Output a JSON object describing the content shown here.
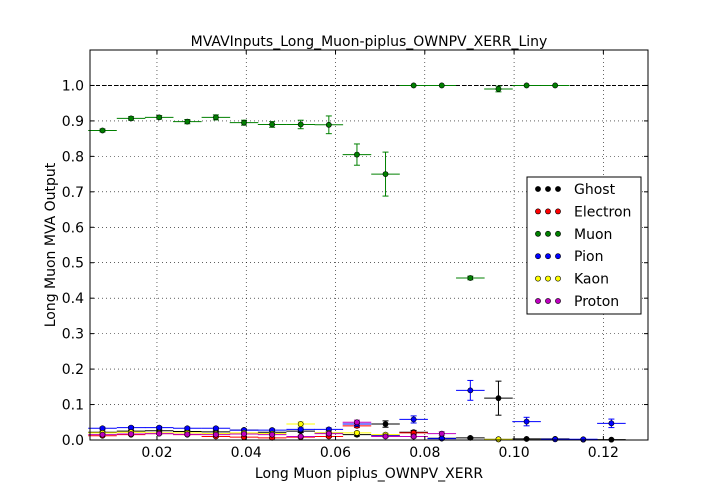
{
  "chart_data": {
    "type": "scatter",
    "title": "MVAVInputs_Long_Muon-piplus_OWNPV_XERR_Liny",
    "xlabel": "Long Muon piplus_OWNPV_XERR",
    "ylabel": "Long Muon MVA Output",
    "xlim": [
      0.005,
      0.13
    ],
    "ylim": [
      0.0,
      1.1
    ],
    "xticks": [
      "0.02",
      "0.04",
      "0.06",
      "0.08",
      "0.10",
      "0.12"
    ],
    "xtick_values": [
      0.02,
      0.04,
      0.06,
      0.08,
      0.1,
      0.12
    ],
    "yticks": [
      "0.0",
      "0.1",
      "0.2",
      "0.3",
      "0.4",
      "0.5",
      "0.6",
      "0.7",
      "0.8",
      "0.9",
      "1.0"
    ],
    "ytick_values": [
      0.0,
      0.1,
      0.2,
      0.3,
      0.4,
      0.5,
      0.6,
      0.7,
      0.8,
      0.9,
      1.0
    ],
    "grid": true,
    "reference_line": 1.0,
    "legend_position": "center-right",
    "bin_half_width": 0.0032,
    "series": [
      {
        "name": "Ghost",
        "color": "#000000",
        "x": [
          0.0078,
          0.0142,
          0.0205,
          0.0268,
          0.0332,
          0.0395,
          0.0458,
          0.0522,
          0.0585,
          0.0648,
          0.0712,
          0.0775,
          0.0838,
          0.0902,
          0.0965,
          0.1028,
          0.1092,
          0.1155,
          0.1218
        ],
        "y": [
          0.022,
          0.025,
          0.026,
          0.024,
          0.023,
          0.028,
          0.022,
          0.025,
          0.02,
          0.015,
          0.045,
          0.022,
          0.005,
          0.006,
          0.118,
          0.003,
          0.003,
          0.001,
          0.001
        ],
        "yerr": [
          0.003,
          0.003,
          0.003,
          0.003,
          0.003,
          0.003,
          0.003,
          0.004,
          0.004,
          0.004,
          0.009,
          0.005,
          0.002,
          0.002,
          0.048,
          0.001,
          0.001,
          0.001,
          0.001
        ]
      },
      {
        "name": "Electron",
        "color": "#ff0000",
        "x": [
          0.0078,
          0.0142,
          0.0205,
          0.0268,
          0.0332,
          0.0395,
          0.0458,
          0.0522,
          0.0585,
          0.0648,
          0.0712,
          0.0775
        ],
        "y": [
          0.012,
          0.015,
          0.018,
          0.015,
          0.01,
          0.008,
          0.006,
          0.008,
          0.01,
          0.04,
          0.012,
          0.02
        ],
        "yerr": [
          0.002,
          0.002,
          0.002,
          0.002,
          0.002,
          0.002,
          0.002,
          0.002,
          0.003,
          0.005,
          0.003,
          0.004
        ]
      },
      {
        "name": "Muon",
        "color": "#008000",
        "x": [
          0.0078,
          0.0142,
          0.0205,
          0.0268,
          0.0332,
          0.0395,
          0.0458,
          0.0522,
          0.0585,
          0.0648,
          0.0712,
          0.0775,
          0.0838,
          0.0902,
          0.0965,
          0.1028,
          0.1092
        ],
        "y": [
          0.873,
          0.907,
          0.91,
          0.898,
          0.91,
          0.895,
          0.89,
          0.89,
          0.889,
          0.805,
          0.75,
          1.0,
          1.0,
          0.457,
          0.99,
          1.0,
          1.0
        ],
        "yerr": [
          0.004,
          0.005,
          0.005,
          0.006,
          0.007,
          0.007,
          0.008,
          0.012,
          0.025,
          0.03,
          0.062,
          0.0,
          0.0,
          0.005,
          0.008,
          0.0,
          0.0
        ]
      },
      {
        "name": "Pion",
        "color": "#0000ff",
        "x": [
          0.0078,
          0.0142,
          0.0205,
          0.0268,
          0.0332,
          0.0395,
          0.0458,
          0.0522,
          0.0585,
          0.0648,
          0.0712,
          0.0775,
          0.0838,
          0.0902,
          0.0965,
          0.1028,
          0.1092,
          0.1155,
          0.1218
        ],
        "y": [
          0.033,
          0.035,
          0.035,
          0.033,
          0.033,
          0.028,
          0.028,
          0.03,
          0.03,
          0.045,
          0.013,
          0.058,
          0.004,
          0.14,
          0.002,
          0.052,
          0.002,
          0.002,
          0.047
        ],
        "yerr": [
          0.003,
          0.003,
          0.003,
          0.003,
          0.003,
          0.003,
          0.003,
          0.004,
          0.004,
          0.006,
          0.004,
          0.01,
          0.002,
          0.028,
          0.001,
          0.012,
          0.001,
          0.001,
          0.012
        ]
      },
      {
        "name": "Kaon",
        "color": "#ffff00",
        "x": [
          0.0078,
          0.0142,
          0.0205,
          0.0268,
          0.0332,
          0.0395,
          0.0458,
          0.0522,
          0.0585,
          0.0648,
          0.0712,
          0.0775,
          0.0965
        ],
        "y": [
          0.02,
          0.022,
          0.02,
          0.02,
          0.018,
          0.02,
          0.018,
          0.045,
          0.02,
          0.02,
          0.015,
          0.01,
          0.002
        ],
        "yerr": [
          0.002,
          0.002,
          0.002,
          0.002,
          0.002,
          0.003,
          0.003,
          0.006,
          0.004,
          0.004,
          0.004,
          0.003,
          0.001
        ]
      },
      {
        "name": "Proton",
        "color": "#bf00bf",
        "x": [
          0.0078,
          0.0142,
          0.0205,
          0.0268,
          0.0332,
          0.0395,
          0.0458,
          0.0522,
          0.0585,
          0.0648,
          0.0712,
          0.0775,
          0.0838
        ],
        "y": [
          0.015,
          0.017,
          0.018,
          0.016,
          0.015,
          0.017,
          0.015,
          0.01,
          0.018,
          0.05,
          0.01,
          0.01,
          0.018
        ],
        "yerr": [
          0.002,
          0.002,
          0.002,
          0.002,
          0.002,
          0.002,
          0.002,
          0.003,
          0.004,
          0.006,
          0.003,
          0.004,
          0.005
        ]
      }
    ]
  }
}
